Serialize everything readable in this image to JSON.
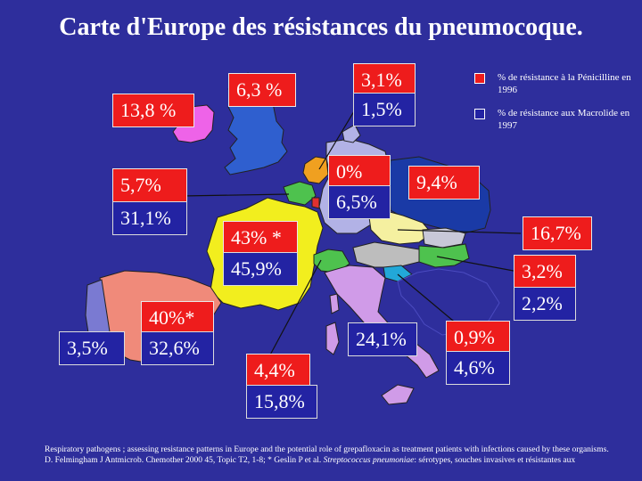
{
  "title": "Carte d'Europe des résistances du pneumocoque.",
  "legend": {
    "penicillin": {
      "label": "% de résistance à la Pénicilline en 1996",
      "color": "#ee1c1c"
    },
    "macrolide": {
      "label": "% de résistance aux Macrolide en 1997",
      "color": "#2323a3"
    }
  },
  "countries": {
    "ireland": {
      "name": "Ireland",
      "penicillin": "13,8 %"
    },
    "uk": {
      "name": "United Kingdom",
      "penicillin": "6,3 %"
    },
    "netherlands": {
      "name": "Netherlands",
      "penicillin": "3,1%",
      "macrolide": "1,5%"
    },
    "belgium": {
      "name": "Belgium",
      "penicillin": "5,7%",
      "macrolide": "31,1%"
    },
    "germany": {
      "name": "Germany",
      "penicillin": "0%",
      "macrolide": "6,5%"
    },
    "poland": {
      "name": "Poland",
      "penicillin": "9,4%"
    },
    "hungary": {
      "name": "Hungary",
      "penicillin": "16,7%"
    },
    "austria": {
      "name": "Austria",
      "penicillin": "3,2%",
      "macrolide": "2,2%"
    },
    "france": {
      "name": "France",
      "penicillin": "43% *",
      "macrolide": "45,9%"
    },
    "spain": {
      "name": "Spain",
      "penicillin": "40%*",
      "macrolide": "32,6%"
    },
    "portugal": {
      "name": "Portugal",
      "macrolide": "3,5%"
    },
    "switzerland": {
      "name": "Switzerland",
      "penicillin": "4,4%",
      "macrolide": "15,8%"
    },
    "italy": {
      "name": "Italy",
      "macrolide": "24,1%"
    },
    "slovenia": {
      "name": "Slovenia",
      "penicillin": "0,9%",
      "macrolide": "4,6%"
    }
  },
  "footer": {
    "line1": "Respiratory pathogens ; assessing resistance patterns in Europe and the potential role of grepafloxacin as treatment patients with infections caused by these organisms.",
    "line2_prefix": "D. Felmingham J Antmicrob. Chemother 2000 45, Topic T2, 1-8; * Geslin P et al. ",
    "line2_species": "Streptococcus pneumoniae",
    "line2_suffix": ": sérotypes, souches invasives et résistantes aux"
  }
}
